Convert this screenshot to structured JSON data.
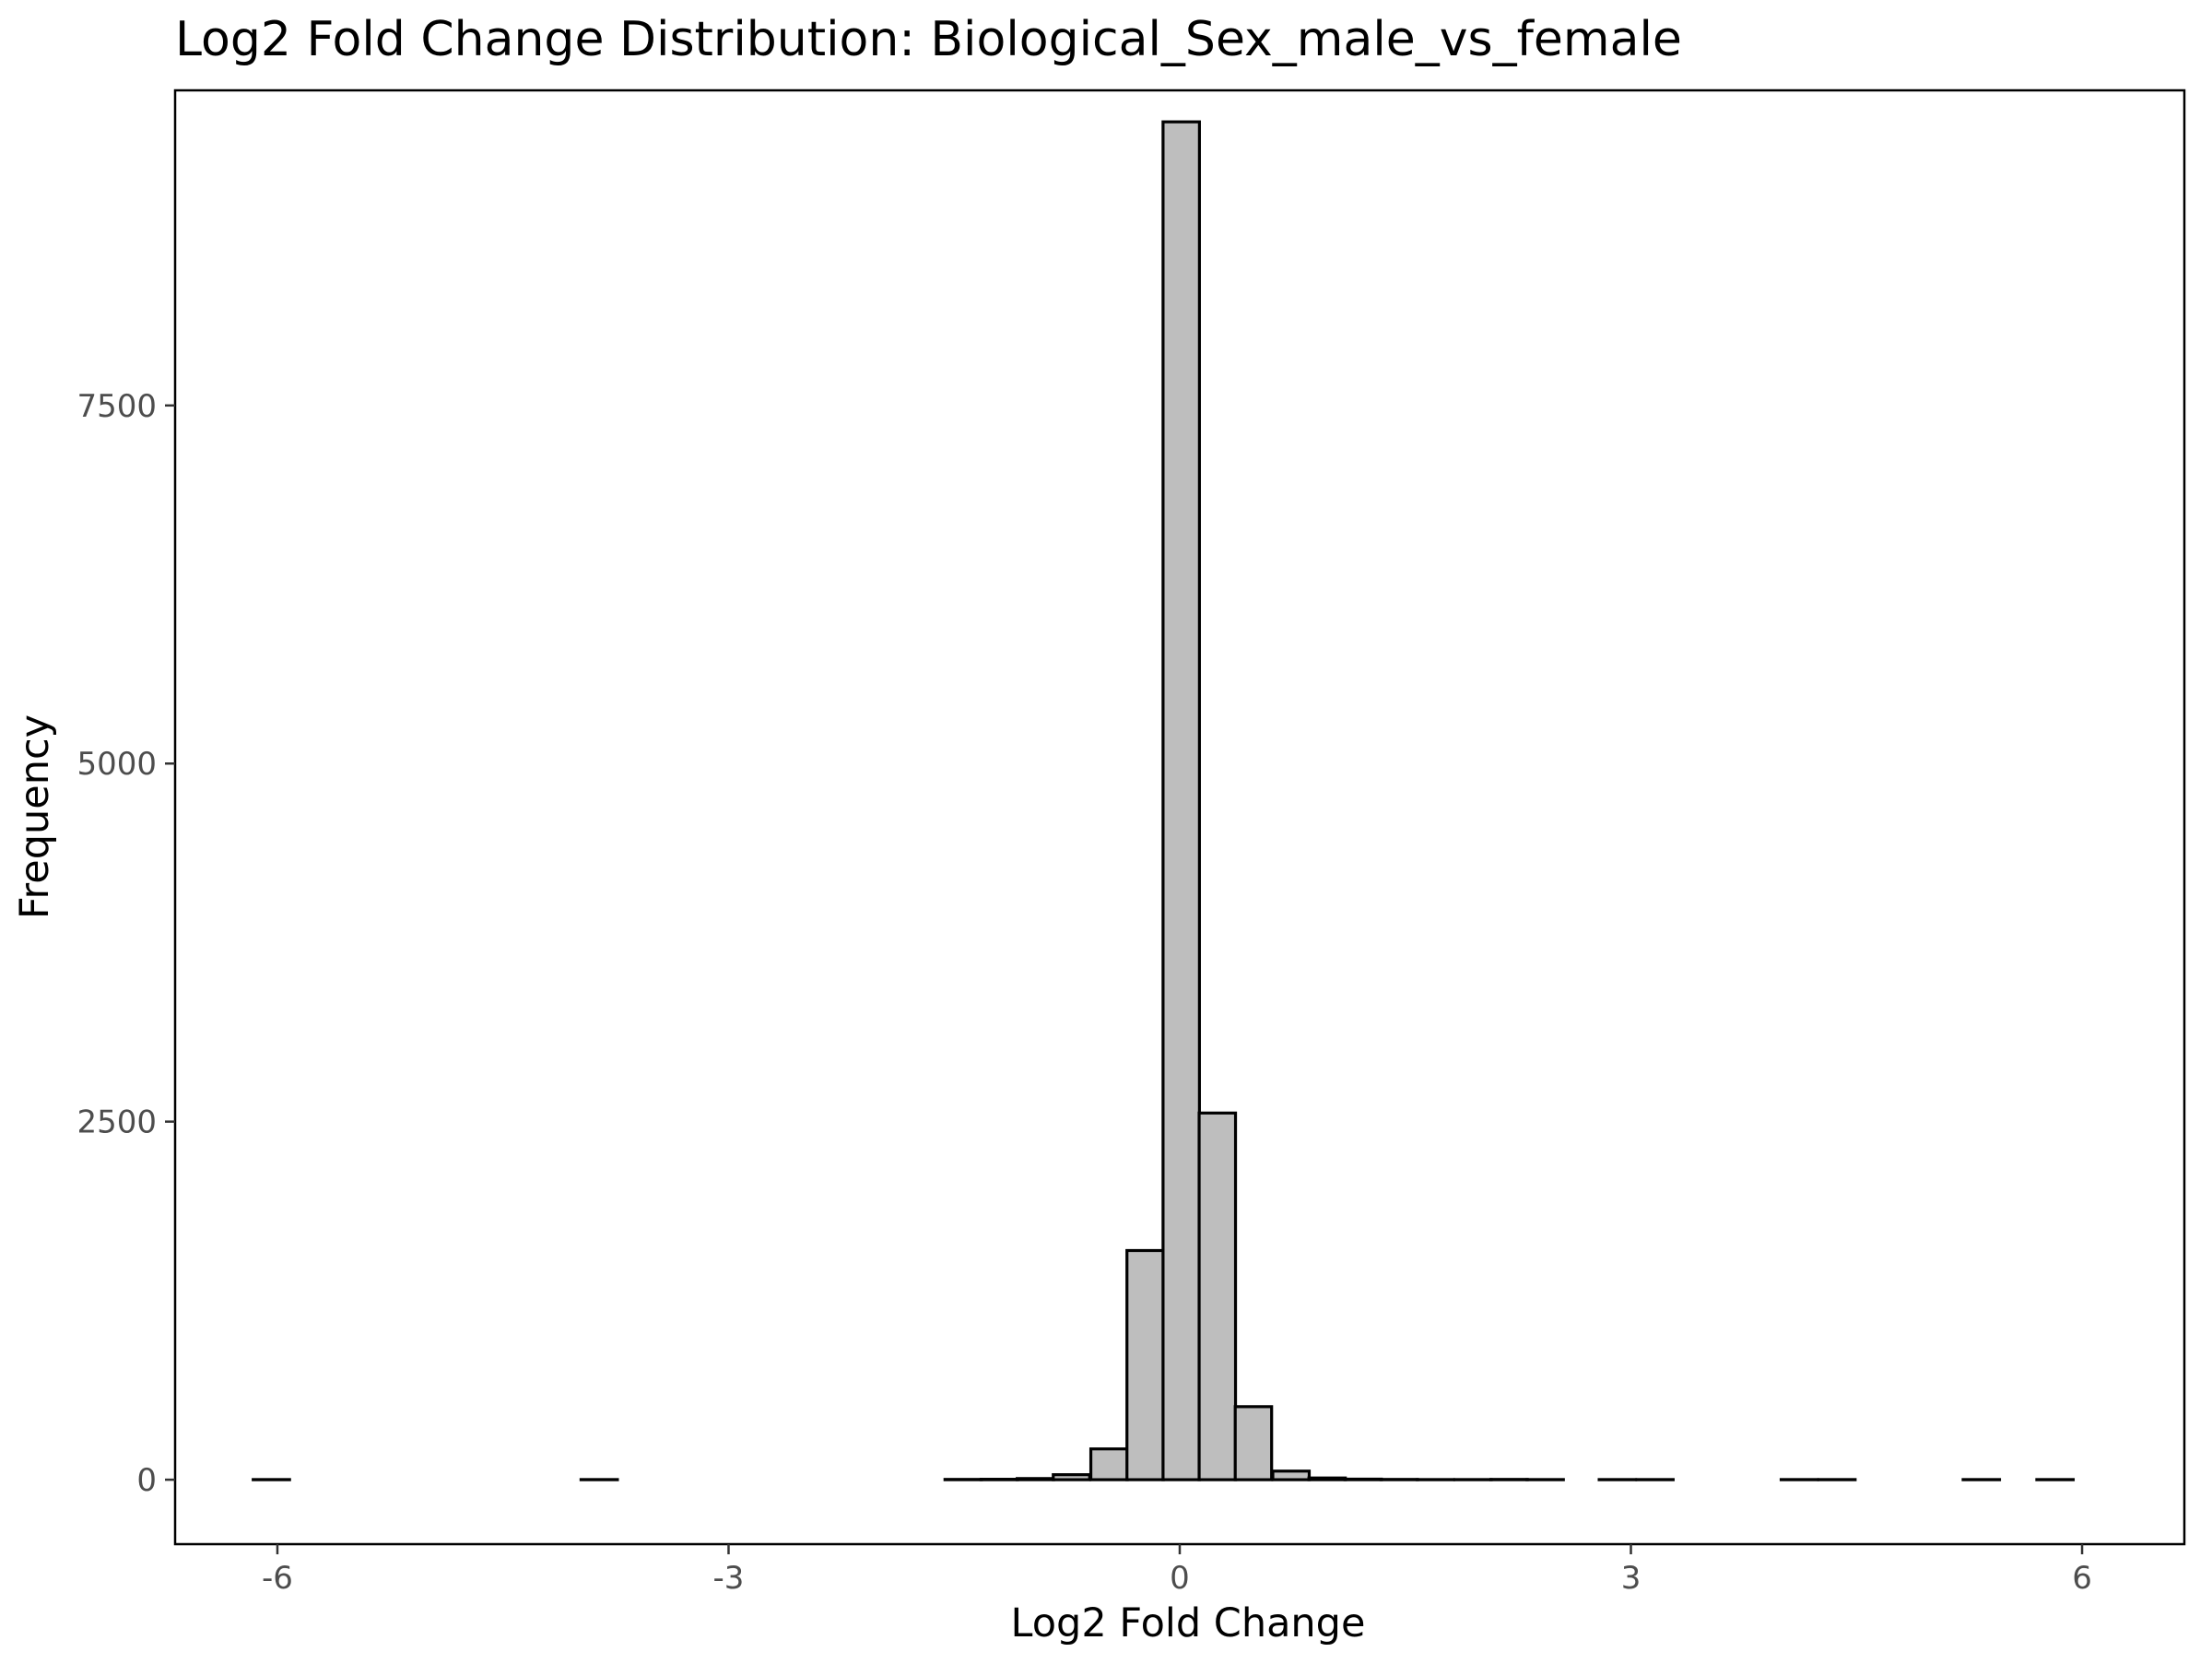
{
  "chart_data": {
    "type": "bar",
    "title": "Log2 Fold Change Distribution: Biological_Sex_male_vs_female",
    "xlabel": "Log2 Fold Change",
    "ylabel": "Frequency",
    "xlim": [
      -6.68,
      6.68
    ],
    "ylim": [
      -450,
      9700
    ],
    "x_ticks": [
      -6,
      -3,
      0,
      3,
      6
    ],
    "x_tick_labels": [
      "-6",
      "-3",
      "0",
      "3",
      "6"
    ],
    "y_ticks": [
      0,
      2500,
      5000,
      7500
    ],
    "y_tick_labels": [
      "0",
      "2500",
      "5000",
      "7500"
    ],
    "bin_width": 0.242,
    "bin_centers": [
      -6.04,
      -5.8,
      -5.56,
      -5.31,
      -5.07,
      -4.83,
      -4.59,
      -4.35,
      -4.1,
      -3.86,
      -3.62,
      -3.38,
      -3.14,
      -2.89,
      -2.65,
      -2.41,
      -2.17,
      -1.93,
      -1.68,
      -1.44,
      -1.2,
      -0.96,
      -0.72,
      -0.47,
      -0.23,
      0.01,
      0.25,
      0.49,
      0.74,
      0.98,
      1.22,
      1.46,
      1.7,
      1.95,
      2.19,
      2.43,
      2.67,
      2.91,
      3.16,
      3.4,
      3.64,
      3.88,
      4.12,
      4.37,
      4.61,
      4.85,
      5.09,
      5.33,
      5.58,
      5.82
    ],
    "values": [
      1,
      0,
      0,
      0,
      0,
      0,
      0,
      0,
      0,
      1,
      0,
      0,
      0,
      0,
      0,
      0,
      0,
      0,
      0,
      2,
      3,
      8,
      35,
      215,
      1600,
      9480,
      2560,
      510,
      60,
      12,
      4,
      2,
      1,
      1,
      2,
      1,
      0,
      1,
      1,
      0,
      0,
      0,
      1,
      1,
      0,
      0,
      0,
      1,
      0,
      1
    ],
    "colors": {
      "bar_fill": "#bebebe",
      "bar_stroke": "#000000"
    },
    "grid": false,
    "legend": "none"
  }
}
